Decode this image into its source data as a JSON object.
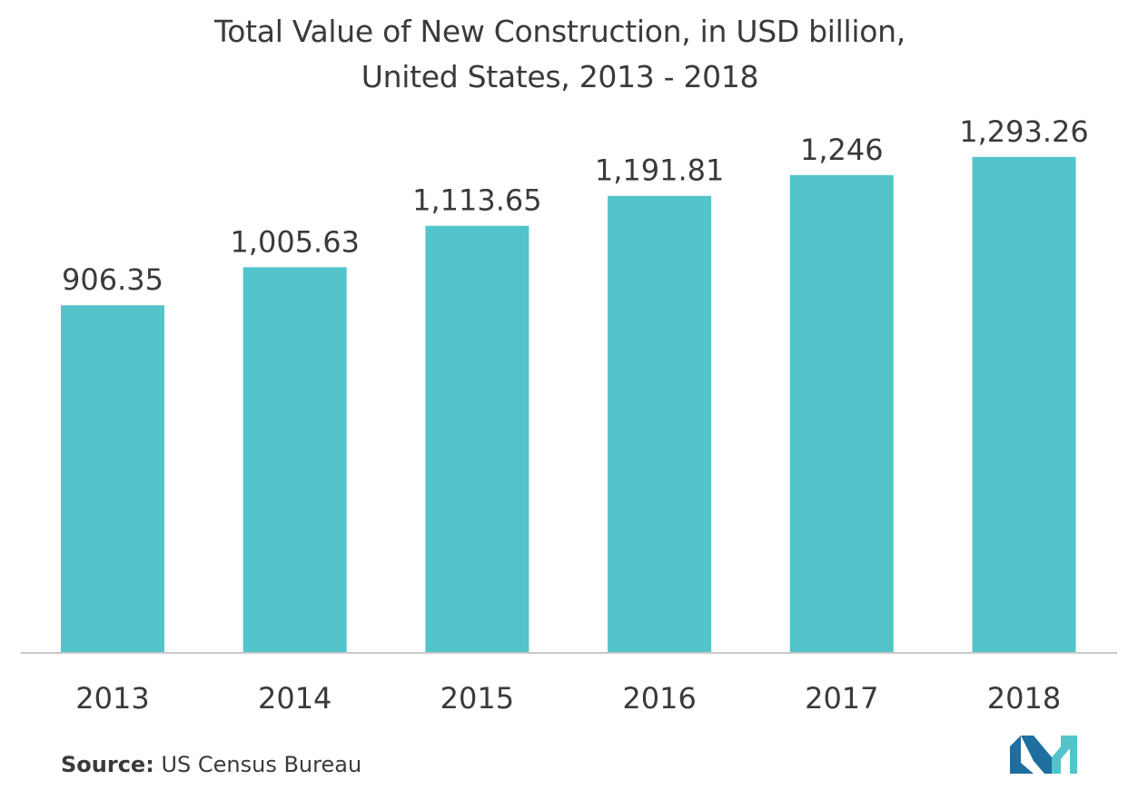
{
  "chart_data": {
    "type": "bar",
    "title": [
      "Total Value of New Construction, in USD billion,",
      "United States, 2013 - 2018"
    ],
    "categories": [
      "2013",
      "2014",
      "2015",
      "2016",
      "2017",
      "2018"
    ],
    "values": [
      906.35,
      1005.63,
      1113.65,
      1191.81,
      1246,
      1293.26
    ],
    "value_labels": [
      "906.35",
      "1,005.63",
      "1,113.65",
      "1,191.81",
      "1,246",
      "1,293.26"
    ],
    "xlabel": "",
    "ylabel": "",
    "ylim": [
      0,
      1300
    ],
    "grid": false,
    "bar_color": "#52c4ca",
    "axis_color": "#c8c8c8"
  },
  "source": {
    "key": "Source:",
    "text": "US Census Bureau"
  },
  "logo": {
    "icon": "company-logo-icon",
    "colors": [
      "#1e6ea0",
      "#52c4ca"
    ]
  }
}
